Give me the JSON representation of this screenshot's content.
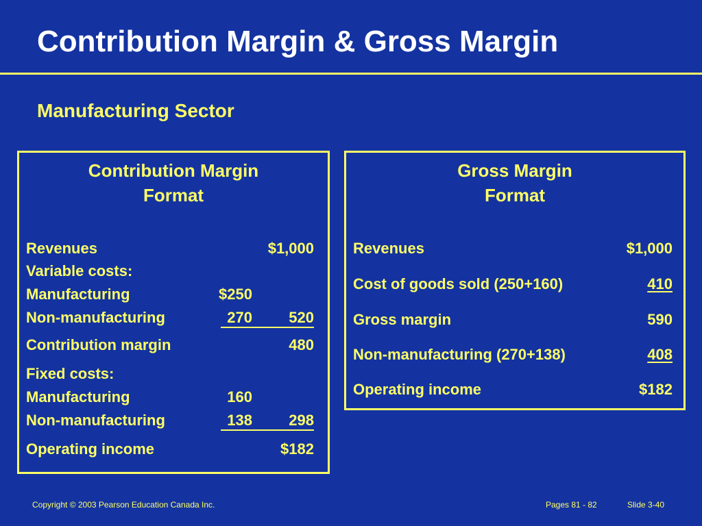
{
  "slide": {
    "title": "Contribution Margin & Gross Margin",
    "subtitle": "Manufacturing Sector"
  },
  "contribution_box": {
    "heading_line1": "Contribution Margin",
    "heading_line2": "Format",
    "rows": [
      {
        "label": "Revenues",
        "col1": "",
        "col2": "$1,000"
      },
      {
        "label": "Variable costs:",
        "col1": "",
        "col2": ""
      },
      {
        "label": "Manufacturing",
        "col1": "$250",
        "col2": ""
      },
      {
        "label": "Non-manufacturing",
        "col1": "270",
        "col2": "520"
      },
      {
        "label": "Contribution margin",
        "col1": "",
        "col2": "480"
      },
      {
        "label": "Fixed costs:",
        "col1": "",
        "col2": ""
      },
      {
        "label": "Manufacturing",
        "col1": "160",
        "col2": ""
      },
      {
        "label": "Non-manufacturing",
        "col1": "138",
        "col2": "298"
      },
      {
        "label": "Operating income",
        "col1": "",
        "col2": "$182"
      }
    ]
  },
  "gross_box": {
    "heading_line1": "Gross Margin",
    "heading_line2": "Format",
    "rows": [
      {
        "label": "Revenues",
        "value": "$1,000"
      },
      {
        "label": "Cost of goods sold (250+160)",
        "value": "410"
      },
      {
        "label": "Gross margin",
        "value": "590"
      },
      {
        "label": "Non-manufacturing (270+138)",
        "value": "408"
      },
      {
        "label": "Operating income",
        "value": "$182"
      }
    ]
  },
  "footer": {
    "copyright": "Copyright © 2003 Pearson Education Canada Inc.",
    "pages": "Pages 81 - 82",
    "slide_number": "Slide 3-40"
  },
  "colors": {
    "background": "#1433a0",
    "accent": "#ffff66",
    "title": "#ffffff"
  }
}
